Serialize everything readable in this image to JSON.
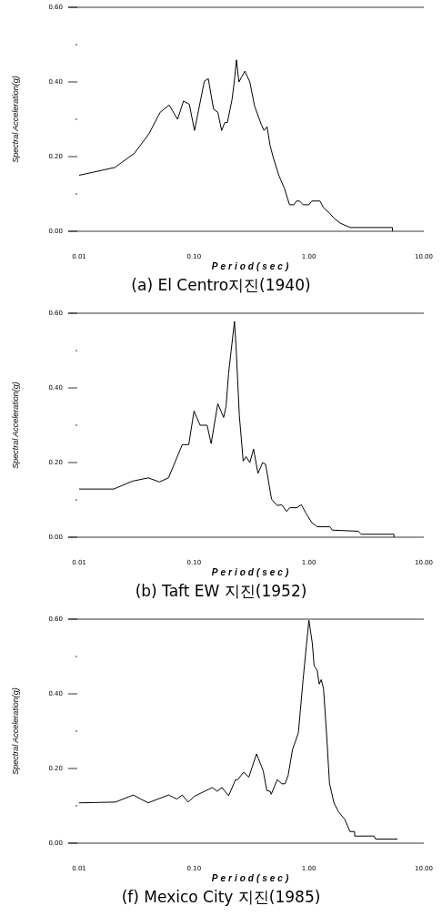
{
  "chart_data": [
    {
      "type": "line",
      "title": "(a) El Centro지진(1940)",
      "xlabel": "Period(sec)",
      "ylabel": "Spectral Acceleration(g)",
      "log": "x",
      "grid": false,
      "line_style": "solid",
      "xlim": [
        0.01,
        10
      ],
      "xticks": [
        {
          "value": 0.01,
          "label": "0.01"
        },
        {
          "value": 0.1,
          "label": "0.10"
        },
        {
          "value": 1,
          "label": "1.00"
        },
        {
          "value": 10,
          "label": "10.00"
        }
      ],
      "ylim": [
        0,
        0.6
      ],
      "yticks": [
        {
          "value": 0,
          "label": "0.00"
        },
        {
          "value": 0.1,
          "label": null
        },
        {
          "value": 0.2,
          "label": "0.20"
        },
        {
          "value": 0.3,
          "label": null
        },
        {
          "value": 0.4,
          "label": "0.40"
        },
        {
          "value": 0.5,
          "label": null
        },
        {
          "value": 0.6,
          "label": "0.60"
        }
      ],
      "series": [
        {
          "color": "#000000",
          "x": [
            0.01,
            0.0205,
            0.0303,
            0.0407,
            0.0508,
            0.0608,
            0.0719,
            0.081,
            0.091,
            0.101,
            0.123,
            0.133,
            0.148,
            0.161,
            0.174,
            0.185,
            0.195,
            0.214,
            0.224,
            0.234,
            0.246,
            0.277,
            0.306,
            0.337,
            0.384,
            0.407,
            0.432,
            0.459,
            0.49,
            0.55,
            0.61,
            0.678,
            0.74,
            0.78,
            0.83,
            0.89,
            1.0,
            1.06,
            1.25,
            1.34,
            1.52,
            1.67,
            1.87,
            2.28,
            5.33,
            5.33
          ],
          "values": [
            0.15,
            0.171,
            0.209,
            0.262,
            0.319,
            0.338,
            0.3,
            0.349,
            0.34,
            0.27,
            0.402,
            0.409,
            0.327,
            0.319,
            0.27,
            0.291,
            0.291,
            0.352,
            0.4,
            0.459,
            0.4,
            0.429,
            0.4,
            0.335,
            0.287,
            0.27,
            0.28,
            0.23,
            0.197,
            0.148,
            0.116,
            0.071,
            0.071,
            0.081,
            0.081,
            0.071,
            0.071,
            0.081,
            0.081,
            0.063,
            0.048,
            0.034,
            0.022,
            0.01,
            0.01,
            0.0
          ]
        }
      ]
    },
    {
      "type": "line",
      "title": "(b) Taft EW 지진(1952)",
      "xlabel": "Period(sec)",
      "ylabel": "Spectral Acceleration(g)",
      "log": "x",
      "grid": false,
      "line_style": "solid",
      "xlim": [
        0.01,
        10
      ],
      "xticks": [
        {
          "value": 0.01,
          "label": "0.01"
        },
        {
          "value": 0.1,
          "label": "0.10"
        },
        {
          "value": 1,
          "label": "1.00"
        },
        {
          "value": 10,
          "label": "10.00"
        }
      ],
      "ylim": [
        0,
        0.6
      ],
      "yticks": [
        {
          "value": 0,
          "label": "0.00"
        },
        {
          "value": 0.1,
          "label": null
        },
        {
          "value": 0.2,
          "label": "0.20"
        },
        {
          "value": 0.3,
          "label": null
        },
        {
          "value": 0.4,
          "label": "0.40"
        },
        {
          "value": 0.5,
          "label": null
        },
        {
          "value": 0.6,
          "label": "0.60"
        }
      ],
      "series": [
        {
          "color": "#000000",
          "x": [
            0.01,
            0.02,
            0.029,
            0.04,
            0.05,
            0.06,
            0.079,
            0.09,
            0.1,
            0.113,
            0.13,
            0.141,
            0.161,
            0.181,
            0.19,
            0.2,
            0.225,
            0.232,
            0.248,
            0.268,
            0.284,
            0.306,
            0.33,
            0.36,
            0.396,
            0.42,
            0.473,
            0.53,
            0.58,
            0.64,
            0.68,
            0.78,
            0.86,
            0.94,
            1.06,
            1.18,
            1.52,
            1.6,
            2.69,
            2.85,
            5.5,
            5.5
          ],
          "values": [
            0.129,
            0.129,
            0.15,
            0.159,
            0.148,
            0.159,
            0.248,
            0.248,
            0.338,
            0.3,
            0.3,
            0.251,
            0.358,
            0.321,
            0.35,
            0.44,
            0.578,
            0.513,
            0.326,
            0.204,
            0.216,
            0.2,
            0.236,
            0.171,
            0.2,
            0.195,
            0.102,
            0.085,
            0.087,
            0.069,
            0.079,
            0.079,
            0.087,
            0.065,
            0.039,
            0.028,
            0.028,
            0.019,
            0.016,
            0.008,
            0.008,
            0.0
          ]
        }
      ]
    },
    {
      "type": "line",
      "title": "(f) Mexico City 지진(1985)",
      "xlabel": "Period(sec)",
      "ylabel": "Spectral Acceleration(g)",
      "log": "x",
      "grid": false,
      "line_style": "solid",
      "xlim": [
        0.01,
        10
      ],
      "xticks": [
        {
          "value": 0.01,
          "label": "0.01"
        },
        {
          "value": 0.1,
          "label": "0.10"
        },
        {
          "value": 1,
          "label": "1.00"
        },
        {
          "value": 10,
          "label": "10.00"
        }
      ],
      "ylim": [
        0,
        0.6
      ],
      "yticks": [
        {
          "value": 0,
          "label": "0.00"
        },
        {
          "value": 0.1,
          "label": null
        },
        {
          "value": 0.2,
          "label": "0.20"
        },
        {
          "value": 0.3,
          "label": null
        },
        {
          "value": 0.4,
          "label": "0.40"
        },
        {
          "value": 0.5,
          "label": null
        },
        {
          "value": 0.6,
          "label": "0.60"
        }
      ],
      "series": [
        {
          "color": "#000000",
          "x": [
            0.01,
            0.0207,
            0.0296,
            0.0398,
            0.06,
            0.071,
            0.079,
            0.089,
            0.1,
            0.144,
            0.159,
            0.175,
            0.2,
            0.23,
            0.24,
            0.27,
            0.3,
            0.35,
            0.4,
            0.43,
            0.46,
            0.47,
            0.53,
            0.58,
            0.62,
            0.66,
            0.72,
            0.76,
            0.81,
            0.89,
            0.95,
            1.0,
            1.07,
            1.11,
            1.18,
            1.23,
            1.28,
            1.34,
            1.42,
            1.51,
            1.65,
            1.81,
            2.05,
            2.28,
            2.5,
            2.5,
            3.7,
            3.8,
            5.9
          ],
          "values": [
            0.108,
            0.11,
            0.129,
            0.108,
            0.129,
            0.118,
            0.129,
            0.11,
            0.125,
            0.149,
            0.139,
            0.149,
            0.127,
            0.17,
            0.17,
            0.19,
            0.177,
            0.239,
            0.194,
            0.141,
            0.139,
            0.131,
            0.17,
            0.159,
            0.159,
            0.182,
            0.251,
            0.271,
            0.296,
            0.438,
            0.528,
            0.597,
            0.536,
            0.475,
            0.463,
            0.426,
            0.438,
            0.414,
            0.3,
            0.161,
            0.108,
            0.084,
            0.064,
            0.031,
            0.031,
            0.019,
            0.019,
            0.011,
            0.011
          ]
        }
      ]
    }
  ]
}
